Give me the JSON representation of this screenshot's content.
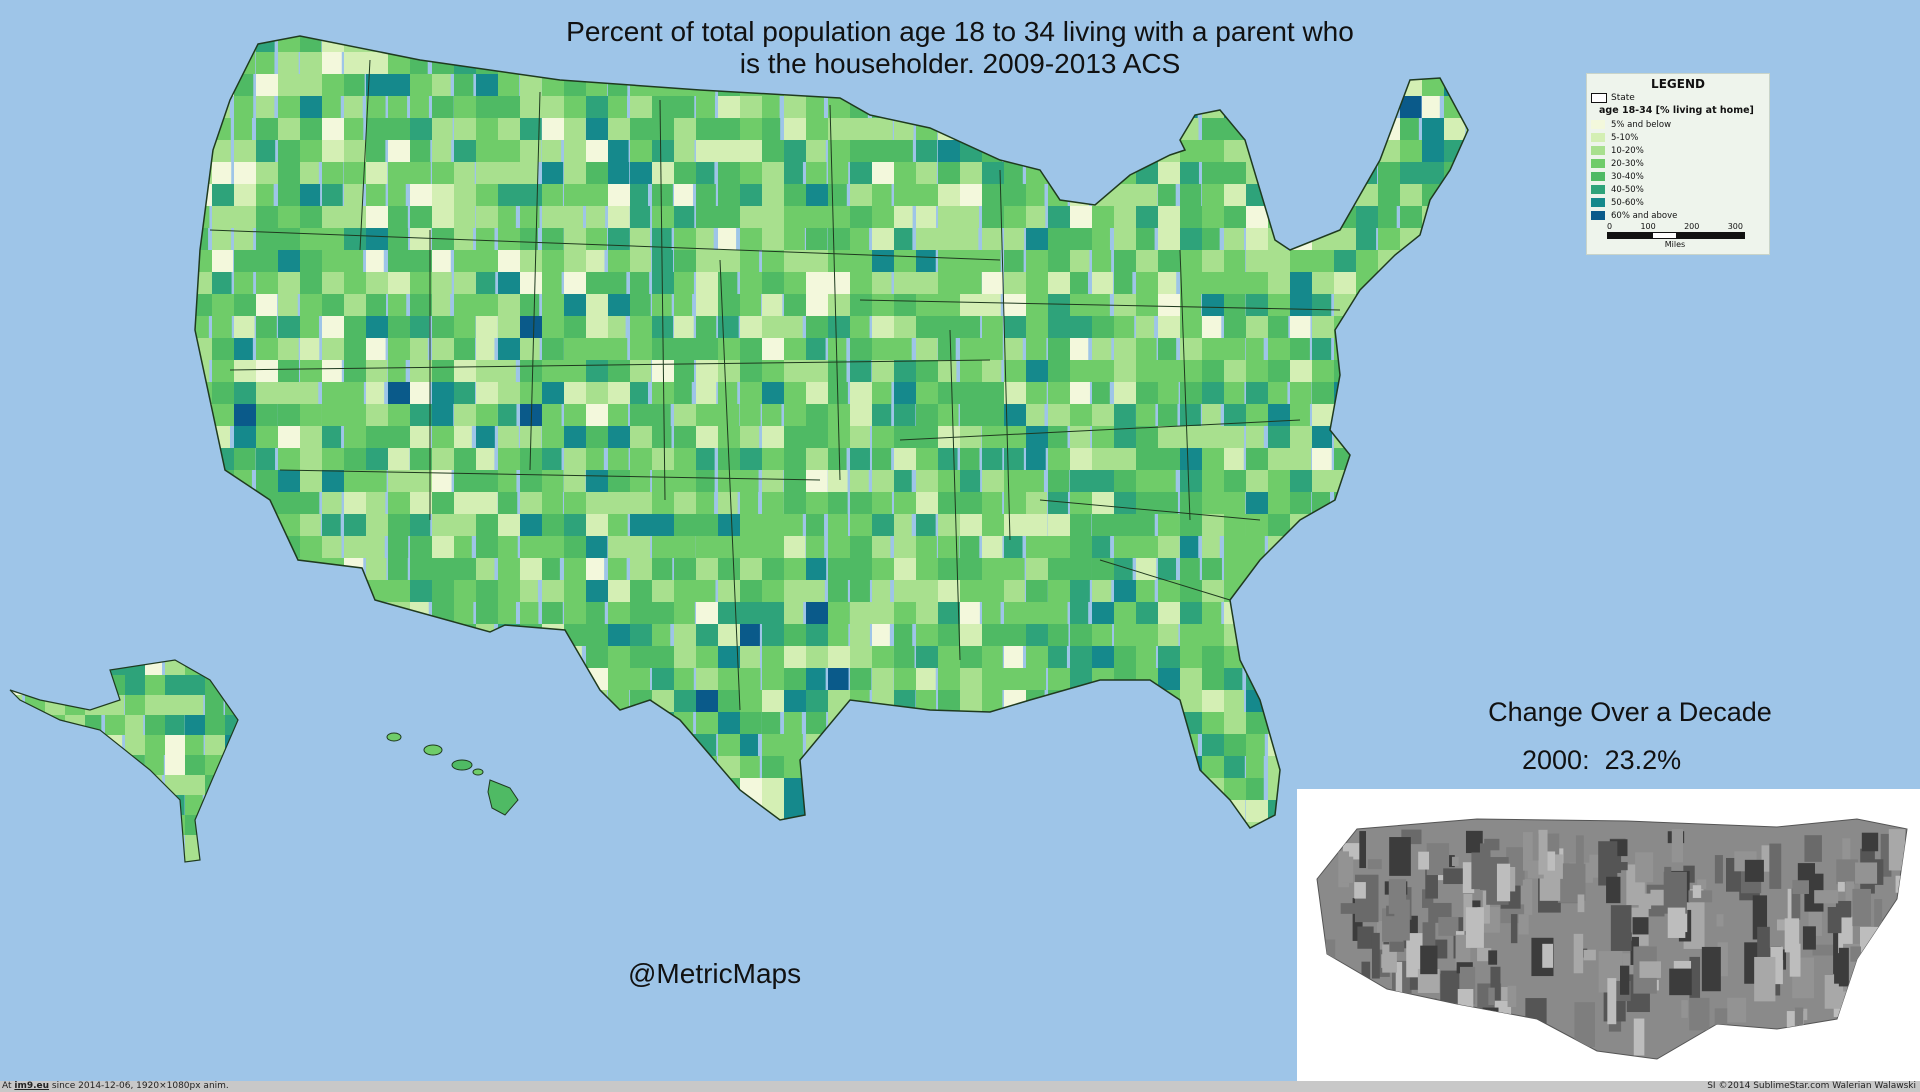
{
  "title": {
    "line1": "Percent of total population age 18 to 34 living with a parent who",
    "line2": "is the householder.  2009-2013 ACS"
  },
  "legend": {
    "heading": "LEGEND",
    "state_label": "State",
    "layer_label": "age 18-34 [% living at home]",
    "classes": [
      {
        "label": "5% and below",
        "color": "#f3f8dc"
      },
      {
        "label": "5-10%",
        "color": "#d4efb4"
      },
      {
        "label": "10-20%",
        "color": "#a8e08e"
      },
      {
        "label": "20-30%",
        "color": "#6fcc69"
      },
      {
        "label": "30-40%",
        "color": "#4fba64"
      },
      {
        "label": "40-50%",
        "color": "#2ea37a"
      },
      {
        "label": "50-60%",
        "color": "#15898c"
      },
      {
        "label": "60% and above",
        "color": "#0a5a8a"
      }
    ],
    "scale_ticks": [
      "0",
      "100",
      "200",
      "300"
    ],
    "scale_unit": "Miles"
  },
  "change": {
    "title": "Change Over a Decade",
    "value_text": "2000:  23.2%"
  },
  "credit": "@MetricMaps",
  "footer": {
    "site": "im9.eu",
    "left_prefix": "At ",
    "left_suffix": " since 2014-12-06, 1920×1080px anim.",
    "right": "SI ©2014 SublimeStar.com Walerian Walawski"
  },
  "colors": {
    "ocean": "#9ec5e8",
    "land_base": "#6fcc69",
    "border": "#1f3a1f"
  }
}
